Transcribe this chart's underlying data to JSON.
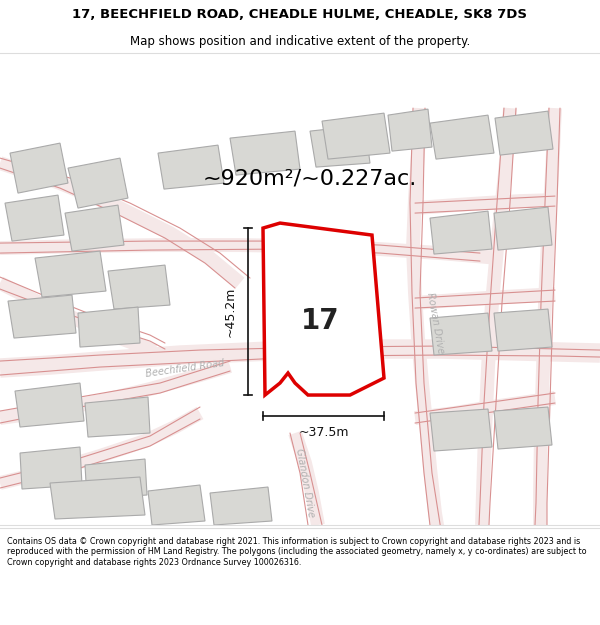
{
  "title_line1": "17, BEECHFIELD ROAD, CHEADLE HULME, CHEADLE, SK8 7DS",
  "title_line2": "Map shows position and indicative extent of the property.",
  "area_label": "~920m²/~0.227ac.",
  "width_label": "~37.5m",
  "height_label": "~45.2m",
  "number_label": "17",
  "road_label1": "Beechfield Road",
  "road_label2": "Rowan Drive",
  "road_label3": "Glandon Drive",
  "footer_text": "Contains OS data © Crown copyright and database right 2021. This information is subject to Crown copyright and database rights 2023 and is reproduced with the permission of HM Land Registry. The polygons (including the associated geometry, namely x, y co-ordinates) are subject to Crown copyright and database rights 2023 Ordnance Survey 100026316.",
  "bg_color": "#ffffff",
  "property_outline_color": "#dd0000",
  "road_line_color": "#f0b8b8",
  "road_outline_color": "#d89090",
  "building_fill": "#d8d8d4",
  "building_stroke": "#aaaaaa",
  "road_text_color": "#b0b0b0",
  "dim_line_color": "#111111",
  "separator_color": "#dddddd",
  "title_fontsize": 9.5,
  "subtitle_fontsize": 8.5,
  "footer_fontsize": 5.8,
  "area_fontsize": 16,
  "number_fontsize": 20,
  "dim_fontsize": 9,
  "road_fontsize": 7,
  "title_bold": true
}
